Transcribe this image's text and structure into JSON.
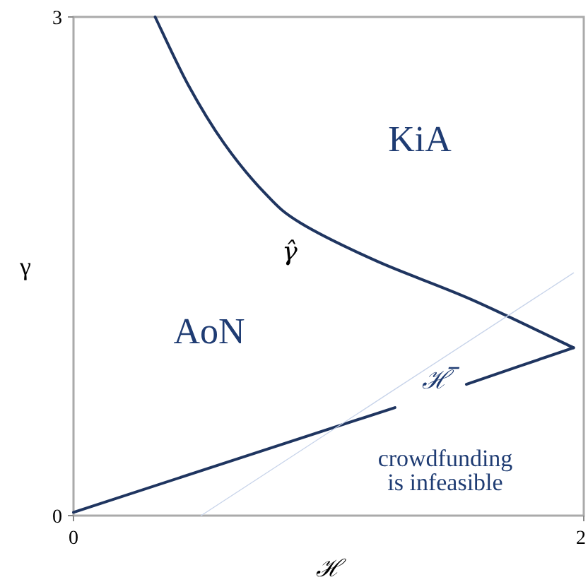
{
  "chart_data": {
    "type": "line",
    "xlabel": "ℋ",
    "ylabel": "γ",
    "xlim": [
      0,
      2
    ],
    "ylim": [
      0,
      3
    ],
    "xticks": [
      0,
      2
    ],
    "yticks": [
      0,
      3
    ],
    "grid": false,
    "marker": "none",
    "series": [
      {
        "x": [
          0.32,
          0.45,
          0.59,
          0.75,
          0.89,
          1.19,
          1.56,
          1.96
        ],
        "values": [
          3.0,
          2.59,
          2.24,
          1.94,
          1.76,
          1.53,
          1.3,
          1.01
        ],
        "color": "#1f3560"
      },
      {
        "x": [
          0,
          1.26,
          null,
          1.54,
          1.96
        ],
        "values": [
          0.02,
          0.65,
          null,
          0.79,
          1.01
        ],
        "color": "#1f3560"
      },
      {
        "x": [
          0.5,
          1.96
        ],
        "values": [
          0,
          1.46
        ],
        "color": "#c8d4ea"
      }
    ],
    "annotations": [
      "KiA",
      "AoN",
      "γ̂",
      "ℋ̅",
      "crowdfunding\nis infeasible"
    ]
  }
}
